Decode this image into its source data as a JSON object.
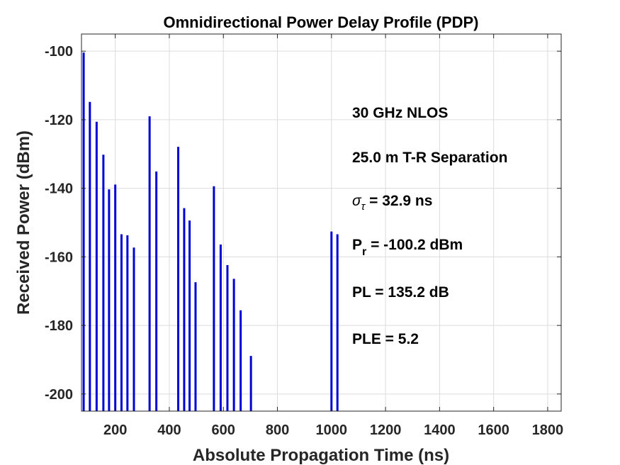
{
  "chart_data": {
    "type": "bar",
    "title": "Omnidirectional Power Delay Profile (PDP)",
    "xlabel": "Absolute Propagation Time (ns)",
    "ylabel": "Received Power (dBm)",
    "xlim": [
      75,
      1850
    ],
    "ylim": [
      -205,
      -95
    ],
    "xticks": [
      200,
      400,
      600,
      800,
      1000,
      1200,
      1400,
      1600,
      1800
    ],
    "yticks": [
      -100,
      -120,
      -140,
      -160,
      -180,
      -200
    ],
    "grid": true,
    "series": [
      {
        "color": "#0000d6",
        "x": [
          83,
          106,
          131,
          156,
          177,
          200,
          223,
          245,
          269,
          327,
          352,
          433,
          455,
          475,
          497,
          565,
          590,
          615,
          639,
          664,
          702,
          1000,
          1022
        ],
        "y": [
          -100.4,
          -114.8,
          -120.6,
          -130.2,
          -140.3,
          -138.9,
          -153.4,
          -153.7,
          -157.3,
          -119.0,
          -135.1,
          -127.9,
          -145.8,
          -149.4,
          -167.4,
          -139.4,
          -156.4,
          -162.4,
          -166.4,
          -175.6,
          -188.9,
          -152.6,
          -153.4
        ]
      }
    ],
    "annotations": {
      "freq": "30 GHz NLOS",
      "sep": "25.0 m T-R Separation",
      "sigma_sym": "σ",
      "sigma_sub": "τ",
      "sigma_val": " = 32.9 ns",
      "pr_main": "P",
      "pr_sub": "r",
      "pr_val": " = -100.2 dBm",
      "pl": "PL = 135.2 dB",
      "ple": "PLE = 5.2"
    }
  }
}
